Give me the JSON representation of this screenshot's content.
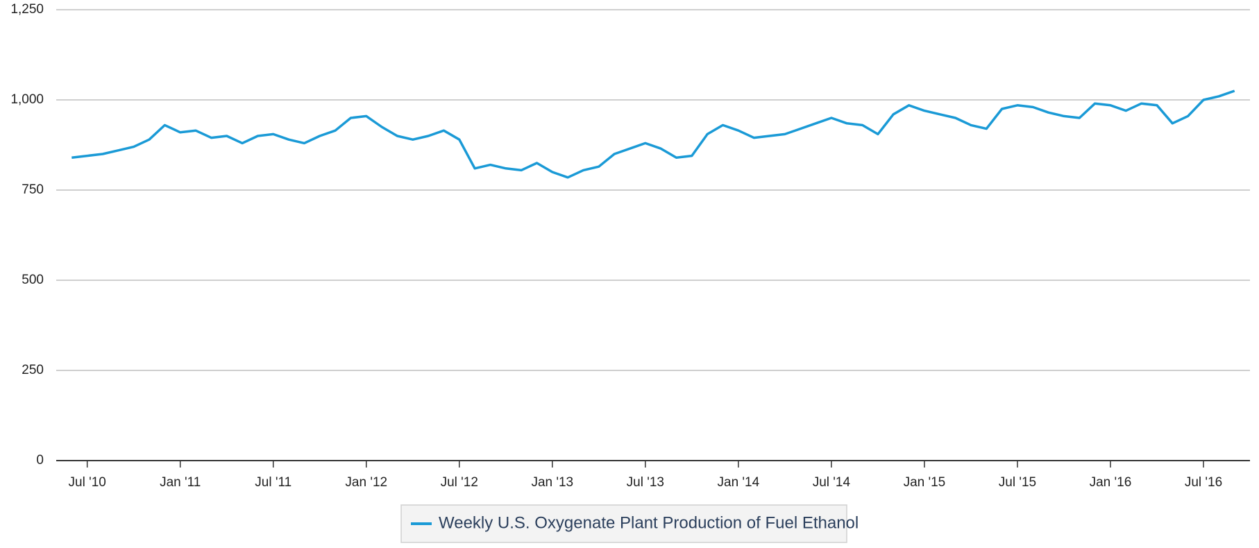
{
  "chart_data": {
    "type": "line",
    "x": [
      "2010-06",
      "2010-07",
      "2010-08",
      "2010-09",
      "2010-10",
      "2010-11",
      "2010-12",
      "2011-01",
      "2011-02",
      "2011-03",
      "2011-04",
      "2011-05",
      "2011-06",
      "2011-07",
      "2011-08",
      "2011-09",
      "2011-10",
      "2011-11",
      "2011-12",
      "2012-01",
      "2012-02",
      "2012-03",
      "2012-04",
      "2012-05",
      "2012-06",
      "2012-07",
      "2012-08",
      "2012-09",
      "2012-10",
      "2012-11",
      "2012-12",
      "2013-01",
      "2013-02",
      "2013-03",
      "2013-04",
      "2013-05",
      "2013-06",
      "2013-07",
      "2013-08",
      "2013-09",
      "2013-10",
      "2013-11",
      "2013-12",
      "2014-01",
      "2014-02",
      "2014-03",
      "2014-04",
      "2014-05",
      "2014-06",
      "2014-07",
      "2014-08",
      "2014-09",
      "2014-10",
      "2014-11",
      "2014-12",
      "2015-01",
      "2015-02",
      "2015-03",
      "2015-04",
      "2015-05",
      "2015-06",
      "2015-07",
      "2015-08",
      "2015-09",
      "2015-10",
      "2015-11",
      "2015-12",
      "2016-01",
      "2016-02",
      "2016-03",
      "2016-04",
      "2016-05",
      "2016-06",
      "2016-07",
      "2016-08",
      "2016-09"
    ],
    "series": [
      {
        "name": "Weekly U.S. Oxygenate Plant Production of Fuel Ethanol",
        "color": "#1a9ad6",
        "values": [
          840,
          845,
          850,
          860,
          870,
          890,
          930,
          910,
          915,
          895,
          900,
          880,
          900,
          905,
          890,
          880,
          900,
          915,
          950,
          955,
          925,
          900,
          890,
          900,
          915,
          890,
          810,
          820,
          810,
          805,
          825,
          800,
          785,
          805,
          815,
          850,
          865,
          880,
          865,
          840,
          845,
          905,
          930,
          915,
          895,
          900,
          905,
          920,
          935,
          950,
          935,
          930,
          905,
          960,
          985,
          970,
          960,
          950,
          930,
          920,
          975,
          985,
          980,
          965,
          955,
          950,
          990,
          985,
          970,
          990,
          985,
          935,
          955,
          1000,
          1010,
          1025
        ]
      }
    ],
    "xlim": [
      "2010-05",
      "2016-10"
    ],
    "xticks": [
      {
        "value": "2010-07",
        "label": "Jul '10"
      },
      {
        "value": "2011-01",
        "label": "Jan '11"
      },
      {
        "value": "2011-07",
        "label": "Jul '11"
      },
      {
        "value": "2012-01",
        "label": "Jan '12"
      },
      {
        "value": "2012-07",
        "label": "Jul '12"
      },
      {
        "value": "2013-01",
        "label": "Jan '13"
      },
      {
        "value": "2013-07",
        "label": "Jul '13"
      },
      {
        "value": "2014-01",
        "label": "Jan '14"
      },
      {
        "value": "2014-07",
        "label": "Jul '14"
      },
      {
        "value": "2015-01",
        "label": "Jan '15"
      },
      {
        "value": "2015-07",
        "label": "Jul '15"
      },
      {
        "value": "2016-01",
        "label": "Jan '16"
      },
      {
        "value": "2016-07",
        "label": "Jul '16"
      }
    ],
    "ylim": [
      0,
      1250
    ],
    "yticks": [
      0,
      250,
      500,
      750,
      {
        "value": 1000,
        "label": "1,000"
      },
      {
        "value": 1250,
        "label": "1,250"
      }
    ],
    "grid": true,
    "legend": "bottom"
  }
}
